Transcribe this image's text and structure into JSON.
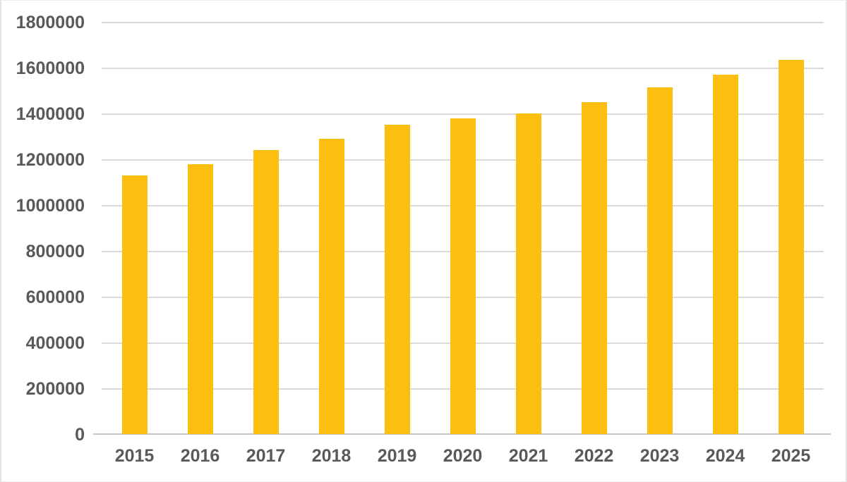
{
  "chart_data": {
    "type": "bar",
    "title": "",
    "xlabel": "",
    "ylabel": "",
    "categories": [
      "2015",
      "2016",
      "2017",
      "2018",
      "2019",
      "2020",
      "2021",
      "2022",
      "2023",
      "2024",
      "2025"
    ],
    "values": [
      1130000,
      1180000,
      1240000,
      1290000,
      1350000,
      1380000,
      1400000,
      1450000,
      1515000,
      1570000,
      1635000
    ],
    "ylim": [
      0,
      1800000
    ],
    "ytick_interval": 200000,
    "yticks": [
      "1800000",
      "1600000",
      "1400000",
      "1200000",
      "1000000",
      "800000",
      "600000",
      "400000",
      "200000",
      "0"
    ],
    "grid": true,
    "legend": false,
    "colors": {
      "bar_fill": "#FCBF10",
      "gridline": "#D9D9D9",
      "axis_line": "#C6C6C6",
      "tick_label": "#595959",
      "background": "#FFFFFF"
    }
  }
}
